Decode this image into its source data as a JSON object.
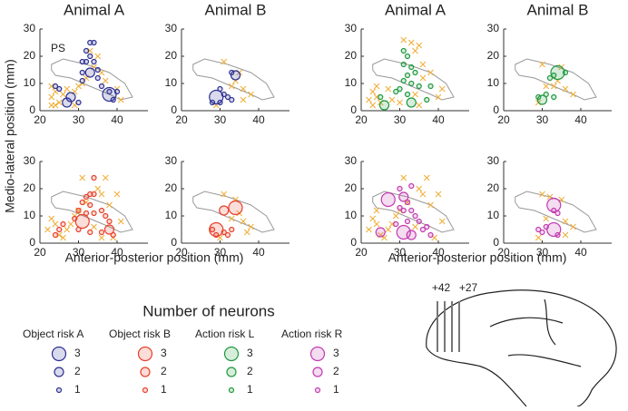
{
  "ylabel": "Medio-lateral position (mm)",
  "xlabel": "Anterior-posterior position (mm)",
  "legend": {
    "title": "Number of neurons",
    "sizes": [
      3,
      2,
      1
    ],
    "entries": [
      {
        "name": "Object risk A",
        "color": "#2e3192"
      },
      {
        "name": "Object risk B",
        "color": "#e8402a"
      },
      {
        "name": "Action risk L",
        "color": "#1f9a3f"
      },
      {
        "name": "Action risk R",
        "color": "#c23bb0"
      }
    ]
  },
  "brain": {
    "labels": [
      "+42",
      "+27"
    ]
  },
  "chart_data": [
    {
      "type": "scatter",
      "title": "Animal A",
      "annotation": "PS",
      "xlim": [
        20,
        48
      ],
      "ylim": [
        0,
        30
      ],
      "xticks": [
        20,
        30,
        40
      ],
      "yticks": [
        0,
        10,
        20,
        30
      ],
      "series": [
        {
          "marker": "x",
          "color": "#f0b03c",
          "x": [
            23,
            24,
            23,
            25,
            24,
            26,
            27,
            29,
            30,
            31,
            32,
            33,
            34,
            36,
            35,
            37,
            40,
            41,
            23,
            29
          ],
          "y": [
            9,
            7,
            5,
            3,
            2,
            6,
            8,
            7,
            9,
            10,
            12,
            22,
            16,
            14,
            20,
            11,
            8,
            4,
            2,
            2
          ]
        },
        {
          "marker": "o",
          "color": "#2e3192",
          "x": [
            33,
            34,
            32,
            33,
            31,
            32,
            34,
            35,
            31,
            33,
            35,
            31,
            25,
            24,
            36,
            38,
            38,
            28,
            27,
            39,
            40,
            30
          ],
          "y": [
            25,
            25,
            22,
            20,
            18,
            18,
            18,
            15,
            14,
            14,
            12,
            11,
            8,
            9,
            9,
            7,
            6,
            5,
            3,
            4,
            7,
            3
          ],
          "sizes": [
            1,
            1,
            1,
            1,
            1,
            1,
            1,
            1,
            1,
            2,
            1,
            1,
            1,
            1,
            1,
            1,
            3,
            2,
            2,
            1,
            1,
            1
          ]
        }
      ]
    },
    {
      "type": "scatter",
      "title": "Animal B",
      "xlim": [
        20,
        48
      ],
      "ylim": [
        0,
        30
      ],
      "xticks": [
        20,
        30,
        40
      ],
      "yticks": [
        0,
        10,
        20,
        30
      ],
      "series": [
        {
          "marker": "x",
          "color": "#f0b03c",
          "x": [
            31,
            35,
            34,
            36,
            38,
            29,
            33,
            36
          ],
          "y": [
            18,
            14,
            11,
            8,
            6,
            2,
            9,
            4
          ]
        },
        {
          "marker": "o",
          "color": "#2e3192",
          "x": [
            34,
            33,
            29,
            28,
            30,
            31,
            30,
            32,
            33
          ],
          "y": [
            13,
            14,
            5,
            3,
            3,
            6,
            8,
            5,
            4
          ],
          "sizes": [
            2,
            1,
            3,
            1,
            1,
            1,
            1,
            1,
            1
          ]
        }
      ]
    },
    {
      "type": "scatter",
      "title": "Animal A",
      "xlim": [
        20,
        48
      ],
      "ylim": [
        0,
        30
      ],
      "xticks": [
        20,
        30,
        40
      ],
      "yticks": [
        0,
        10,
        20,
        30
      ],
      "series": [
        {
          "marker": "x",
          "color": "#f0b03c",
          "x": [
            33,
            35,
            31,
            34,
            36,
            24,
            23,
            24,
            22,
            25,
            27,
            28,
            30,
            34,
            36,
            38,
            40,
            41,
            23,
            35
          ],
          "y": [
            25,
            24,
            26,
            22,
            17,
            9,
            7,
            5,
            4,
            3,
            8,
            4,
            3,
            6,
            12,
            14,
            5,
            8,
            2,
            2
          ]
        },
        {
          "marker": "o",
          "color": "#1f9a3f",
          "x": [
            32,
            31,
            33,
            34,
            32,
            31,
            33,
            35,
            30,
            29,
            32,
            26,
            33,
            37,
            38,
            25,
            31
          ],
          "y": [
            20,
            17,
            16,
            14,
            13,
            11,
            10,
            9,
            8,
            7,
            6,
            2,
            3,
            4,
            9,
            5,
            22
          ],
          "sizes": [
            1,
            1,
            1,
            1,
            1,
            1,
            1,
            1,
            1,
            1,
            1,
            2,
            2,
            1,
            1,
            1,
            1
          ]
        }
      ]
    },
    {
      "type": "scatter",
      "title": "Animal B",
      "xlim": [
        20,
        48
      ],
      "ylim": [
        0,
        30
      ],
      "xticks": [
        20,
        30,
        40
      ],
      "yticks": [
        0,
        10,
        20,
        30
      ],
      "series": [
        {
          "marker": "x",
          "color": "#f0b03c",
          "x": [
            30,
            35,
            33,
            36,
            38,
            29,
            34,
            31
          ],
          "y": [
            17,
            16,
            9,
            8,
            6,
            3,
            11,
            9
          ]
        },
        {
          "marker": "o",
          "color": "#1f9a3f",
          "x": [
            34,
            32,
            33,
            30,
            31,
            29,
            33,
            36
          ],
          "y": [
            14,
            12,
            13,
            4,
            6,
            5,
            5,
            14
          ],
          "sizes": [
            3,
            1,
            1,
            2,
            1,
            1,
            1,
            1
          ]
        }
      ]
    },
    {
      "type": "scatter",
      "xlim": [
        20,
        48
      ],
      "ylim": [
        0,
        30
      ],
      "xticks": [
        20,
        30,
        40
      ],
      "yticks": [
        0,
        10,
        20,
        30
      ],
      "series": [
        {
          "marker": "x",
          "color": "#f0b03c",
          "x": [
            23,
            24,
            22,
            25,
            27,
            28,
            29,
            30,
            32,
            35,
            36,
            38,
            40,
            41,
            39,
            34,
            36,
            26,
            31,
            37
          ],
          "y": [
            9,
            7,
            5,
            3,
            5,
            7,
            10,
            12,
            15,
            20,
            18,
            14,
            18,
            8,
            2,
            6,
            2,
            2,
            24,
            24
          ]
        },
        {
          "marker": "o",
          "color": "#e8402a",
          "x": [
            32,
            33,
            34,
            31,
            33,
            30,
            32,
            34,
            36,
            37,
            38,
            31,
            38,
            36,
            33,
            30,
            25,
            24,
            26,
            29,
            34,
            39
          ],
          "y": [
            17,
            18,
            18,
            15,
            14,
            12,
            11,
            11,
            12,
            10,
            8,
            8,
            5,
            4,
            4,
            5,
            5,
            3,
            7,
            9,
            24,
            3
          ],
          "sizes": [
            1,
            1,
            1,
            1,
            1,
            1,
            1,
            1,
            1,
            1,
            1,
            3,
            2,
            1,
            1,
            1,
            1,
            1,
            1,
            1,
            1,
            1
          ]
        }
      ]
    },
    {
      "type": "scatter",
      "xlim": [
        20,
        48
      ],
      "ylim": [
        0,
        30
      ],
      "xticks": [
        20,
        30,
        40
      ],
      "yticks": [
        0,
        10,
        20,
        30
      ],
      "series": [
        {
          "marker": "x",
          "color": "#f0b03c",
          "x": [
            31,
            34,
            36,
            38,
            35,
            33,
            30,
            37
          ],
          "y": [
            18,
            16,
            8,
            6,
            11,
            9,
            2,
            4
          ]
        },
        {
          "marker": "o",
          "color": "#e8402a",
          "x": [
            34,
            31,
            29,
            29,
            31,
            33,
            32,
            28
          ],
          "y": [
            13,
            12,
            5,
            3,
            4,
            5,
            3,
            5
          ],
          "sizes": [
            3,
            2,
            3,
            1,
            1,
            1,
            1,
            1
          ]
        }
      ]
    },
    {
      "type": "scatter",
      "xlim": [
        20,
        48
      ],
      "ylim": [
        0,
        30
      ],
      "xticks": [
        20,
        30,
        40
      ],
      "yticks": [
        0,
        10,
        20,
        30
      ],
      "series": [
        {
          "marker": "x",
          "color": "#f0b03c",
          "x": [
            23,
            24,
            22,
            25,
            27,
            28,
            29,
            30,
            32,
            35,
            36,
            38,
            40,
            41,
            39,
            34,
            26,
            31,
            37,
            24
          ],
          "y": [
            9,
            7,
            5,
            3,
            5,
            7,
            10,
            12,
            15,
            20,
            18,
            14,
            18,
            8,
            2,
            6,
            2,
            24,
            24,
            12
          ]
        },
        {
          "marker": "o",
          "color": "#c23bb0",
          "x": [
            27,
            31,
            32,
            30,
            31,
            33,
            34,
            35,
            25,
            31,
            33,
            37,
            38,
            32,
            29,
            30,
            33,
            36
          ],
          "y": [
            16,
            17,
            15,
            13,
            12,
            12,
            10,
            8,
            4,
            4,
            3,
            6,
            3,
            8,
            7,
            20,
            21,
            5
          ],
          "sizes": [
            3,
            2,
            1,
            1,
            1,
            1,
            1,
            1,
            2,
            3,
            2,
            1,
            1,
            1,
            1,
            1,
            1,
            1
          ]
        }
      ]
    },
    {
      "type": "scatter",
      "xlim": [
        20,
        48
      ],
      "ylim": [
        0,
        30
      ],
      "xticks": [
        20,
        30,
        40
      ],
      "yticks": [
        0,
        10,
        20,
        30
      ],
      "series": [
        {
          "marker": "x",
          "color": "#f0b03c",
          "x": [
            30,
            35,
            36,
            38,
            29,
            31,
            36,
            32
          ],
          "y": [
            18,
            16,
            8,
            6,
            2,
            9,
            3,
            17
          ]
        },
        {
          "marker": "o",
          "color": "#c23bb0",
          "x": [
            33,
            33,
            34,
            33,
            31,
            30,
            29,
            34
          ],
          "y": [
            14,
            12,
            11,
            5,
            6,
            4,
            5,
            3
          ],
          "sizes": [
            3,
            1,
            1,
            3,
            1,
            1,
            1,
            1
          ]
        }
      ]
    }
  ]
}
